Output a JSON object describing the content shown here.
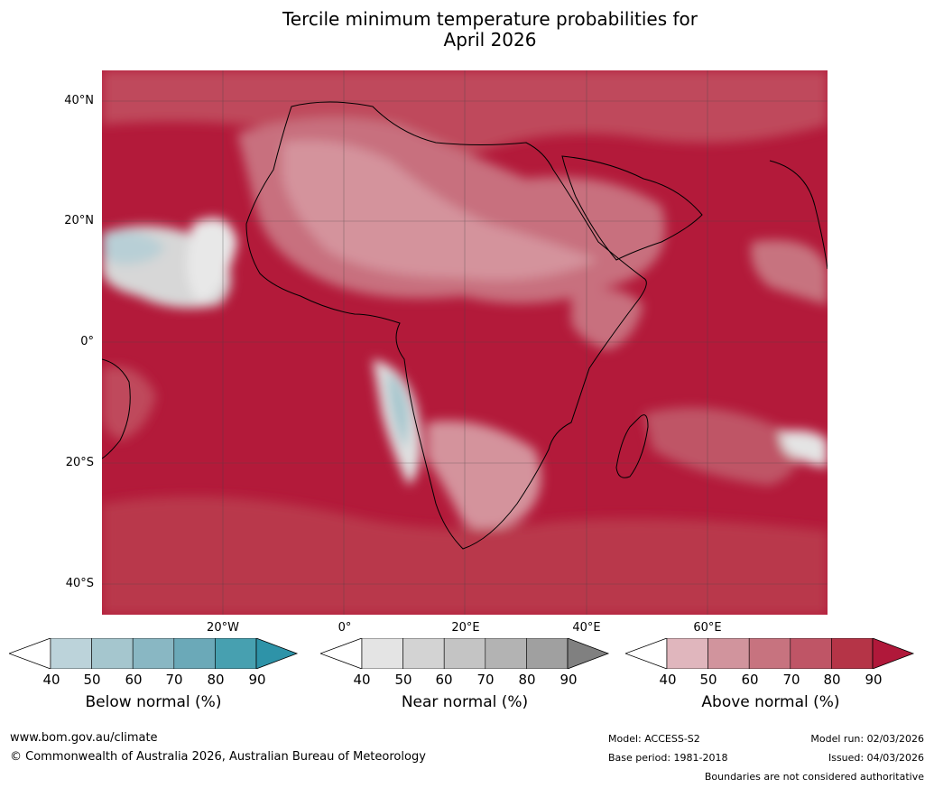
{
  "title_line1": "Tercile minimum temperature probabilities for",
  "title_line2": "April 2026",
  "lat_labels": [
    "40°N",
    "20°N",
    "0°",
    "20°S",
    "40°S"
  ],
  "lon_labels": [
    "20°W",
    "0°",
    "20°E",
    "40°E",
    "60°E"
  ],
  "colorbars": [
    {
      "label": "Below normal (%)",
      "ticks": [
        "40",
        "50",
        "60",
        "70",
        "80",
        "90"
      ],
      "colors": [
        "#ffffff",
        "#bcd3da",
        "#a5c6ce",
        "#89b7c3",
        "#6ba9b8",
        "#47a0b0",
        "#2e93a8"
      ]
    },
    {
      "label": "Near normal (%)",
      "ticks": [
        "40",
        "50",
        "60",
        "70",
        "80",
        "90"
      ],
      "colors": [
        "#ffffff",
        "#e4e4e4",
        "#d3d3d3",
        "#c4c4c4",
        "#b3b3b3",
        "#a0a0a0",
        "#808080"
      ]
    },
    {
      "label": "Above normal (%)",
      "ticks": [
        "40",
        "50",
        "60",
        "70",
        "80",
        "90"
      ],
      "colors": [
        "#ffffff",
        "#e0b6bd",
        "#d1949d",
        "#c7737f",
        "#bf5566",
        "#b53447",
        "#b0183a"
      ]
    }
  ],
  "footer": {
    "url": "www.bom.gov.au/climate",
    "copyright": "© Commonwealth of Australia 2026, Australian Bureau of Meteorology",
    "model": "Model: ACCESS-S2",
    "base_period": "Base period: 1981-2018",
    "model_run": "Model run: 02/03/2026",
    "issued": "Issued: 04/03/2026",
    "disclaimer": "Boundaries are not considered authoritative"
  }
}
